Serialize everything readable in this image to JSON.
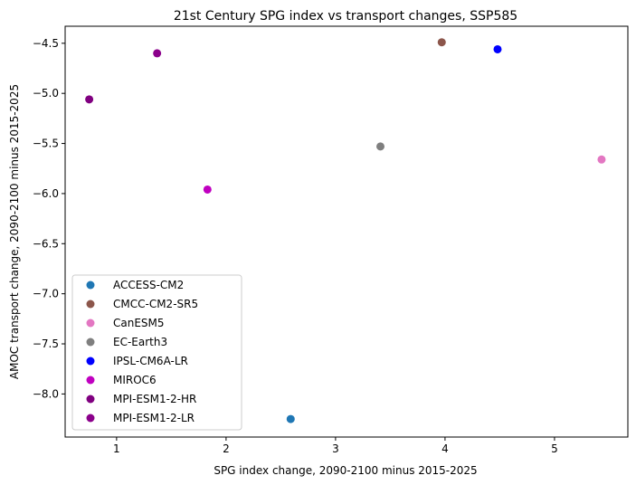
{
  "chart_data": {
    "type": "scatter",
    "title": "21st Century SPG index vs transport changes, SSP585",
    "xlabel": "SPG index change, 2090-2100 minus 2015-2025",
    "ylabel": "AMOC transport change, 2090-2100 minus 2015-2025",
    "xlim": [
      0.53,
      5.67
    ],
    "ylim": [
      -8.43,
      -4.33
    ],
    "xticks": [
      1,
      2,
      3,
      4,
      5
    ],
    "xtick_labels": [
      "1",
      "2",
      "3",
      "4",
      "5"
    ],
    "yticks": [
      -8.0,
      -7.5,
      -7.0,
      -6.5,
      -6.0,
      -5.5,
      -5.0,
      -4.5
    ],
    "ytick_labels": [
      "−8.0",
      "−7.5",
      "−7.0",
      "−6.5",
      "−6.0",
      "−5.5",
      "−5.0",
      "−4.5"
    ],
    "grid": false,
    "legend_position": "lower-left",
    "series": [
      {
        "name": "ACCESS-CM2",
        "color": "#1f77b4",
        "points": [
          {
            "x": 2.59,
            "y": -8.25
          }
        ]
      },
      {
        "name": "CMCC-CM2-SR5",
        "color": "#8c564b",
        "points": [
          {
            "x": 3.97,
            "y": -4.49
          }
        ]
      },
      {
        "name": "CanESM5",
        "color": "#e377c2",
        "points": [
          {
            "x": 5.43,
            "y": -5.66
          }
        ]
      },
      {
        "name": "EC-Earth3",
        "color": "#7f7f7f",
        "points": [
          {
            "x": 3.41,
            "y": -5.53
          }
        ]
      },
      {
        "name": "IPSL-CM6A-LR",
        "color": "#0000ff",
        "points": [
          {
            "x": 4.48,
            "y": -4.56
          }
        ]
      },
      {
        "name": "MIROC6",
        "color": "#c000c0",
        "points": [
          {
            "x": 1.83,
            "y": -5.96
          }
        ]
      },
      {
        "name": "MPI-ESM1-2-HR",
        "color": "#800080",
        "points": [
          {
            "x": 0.75,
            "y": -5.06
          }
        ]
      },
      {
        "name": "MPI-ESM1-2-LR",
        "color": "#8b008b",
        "points": [
          {
            "x": 1.37,
            "y": -4.6
          }
        ]
      }
    ]
  }
}
